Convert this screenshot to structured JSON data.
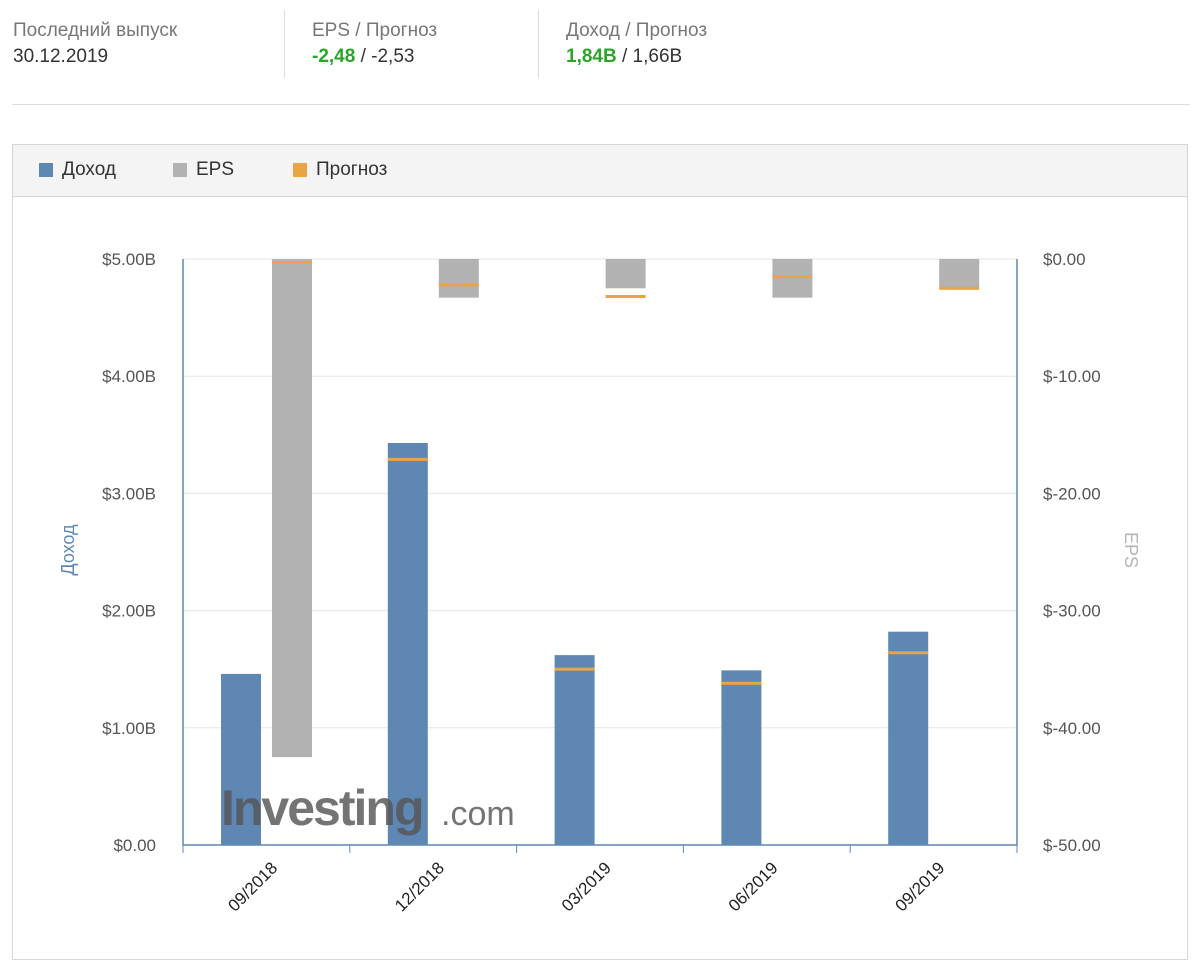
{
  "header": {
    "last_release": {
      "label": "Последний выпуск",
      "value": "30.12.2019"
    },
    "eps": {
      "label": "EPS / Прогноз",
      "actual": "-2,48",
      "sep": " / ",
      "forecast": "-2,53"
    },
    "revenue": {
      "label": "Доход / Прогноз",
      "actual": "1,84B",
      "sep": " / ",
      "forecast": "1,66B"
    }
  },
  "legend": [
    {
      "label": "Доход",
      "color": "#5f87b4"
    },
    {
      "label": "EPS",
      "color": "#b2b2b2"
    },
    {
      "label": "Прогноз",
      "color": "#e8a445"
    }
  ],
  "watermark": {
    "brand": "Investing",
    "suffix": ".com"
  },
  "chart_data": {
    "type": "bar",
    "title": "",
    "categories": [
      "09/2018",
      "12/2018",
      "03/2019",
      "06/2019",
      "09/2019"
    ],
    "left_axis": {
      "label": "Доход",
      "ylim": [
        0,
        5
      ],
      "ticks": [
        0,
        1,
        2,
        3,
        4,
        5
      ],
      "tick_labels": [
        "$0.00",
        "$1.00B",
        "$2.00B",
        "$3.00B",
        "$4.00B",
        "$5.00B"
      ]
    },
    "right_axis": {
      "label": "EPS",
      "ylim": [
        -50,
        0
      ],
      "ticks": [
        0,
        -10,
        -20,
        -30,
        -40,
        -50
      ],
      "tick_labels": [
        "$0.00",
        "$-10.00",
        "$-20.00",
        "$-30.00",
        "$-40.00",
        "$-50.00"
      ]
    },
    "grid": true,
    "series": [
      {
        "name": "Доход",
        "axis": "left",
        "values": [
          1.46,
          3.43,
          1.62,
          1.49,
          1.82
        ],
        "color": "#5f87b4"
      },
      {
        "name": "Доход прогноз",
        "axis": "left",
        "values": [
          null,
          3.29,
          1.5,
          1.38,
          1.64
        ],
        "color": "#e8a445"
      },
      {
        "name": "EPS",
        "axis": "right",
        "values": [
          -42.5,
          -3.3,
          -2.5,
          -3.3,
          -2.5
        ],
        "color": "#b2b2b2"
      },
      {
        "name": "EPS прогноз",
        "axis": "right",
        "values": [
          -0.3,
          -2.2,
          -3.2,
          -1.5,
          -2.5
        ],
        "color": "#e8a445"
      }
    ]
  }
}
